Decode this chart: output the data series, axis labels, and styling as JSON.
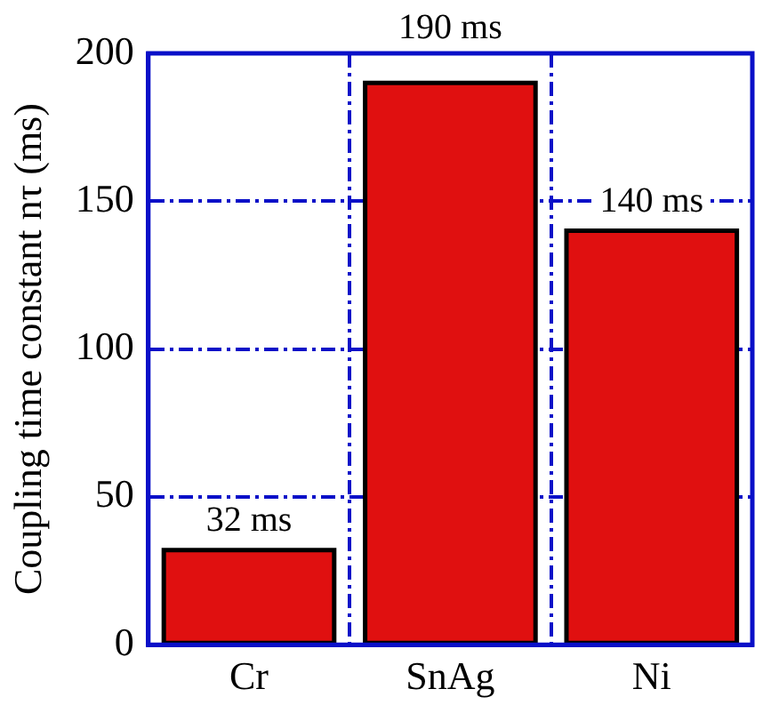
{
  "chart_data": {
    "type": "bar",
    "ylabel": "Coupling time constant nτ (ms)",
    "categories": [
      "Cr",
      "SnAg",
      "Ni"
    ],
    "values": [
      32,
      190,
      140
    ],
    "value_labels": [
      "32 ms",
      "190 ms",
      "140 ms"
    ],
    "color": "#e01010",
    "ylim": [
      0,
      200
    ],
    "yticks": [
      0,
      50,
      100,
      150,
      200
    ],
    "grid": true
  }
}
